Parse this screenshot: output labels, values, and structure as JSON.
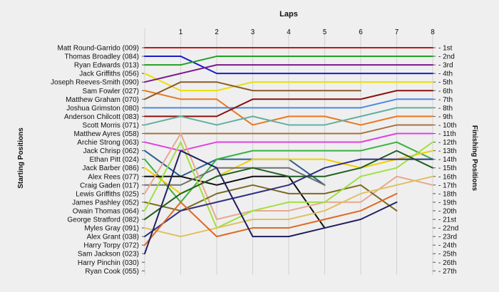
{
  "chart_data": {
    "type": "line",
    "title": "Laps",
    "ylabel_left": "Starting Positions",
    "ylabel_right": "Finishing Positions",
    "laps": [
      "1",
      "2",
      "3",
      "4",
      "5",
      "6",
      "7",
      "8"
    ],
    "position_labels": [
      "1st",
      "2nd",
      "3rd",
      "4th",
      "5th",
      "6th",
      "7th",
      "8th",
      "9th",
      "10th",
      "11th",
      "12th",
      "13th",
      "14th",
      "15th",
      "16th",
      "17th",
      "18th",
      "19th",
      "20th",
      "21st",
      "22nd",
      "23rd",
      "24th",
      "25th",
      "26th",
      "27th"
    ],
    "grid": true,
    "series": [
      {
        "name": "Matt Round-Garrido (009)",
        "color": "#cc1111",
        "positions": [
          1,
          1,
          1,
          1,
          1,
          1,
          1,
          1,
          1
        ]
      },
      {
        "name": "Thomas Broadley (084)",
        "color": "#1a1ad0",
        "positions": [
          2,
          2,
          4,
          4,
          4,
          4,
          4,
          4,
          4
        ]
      },
      {
        "name": "Ryan Edwards (013)",
        "color": "#22a022",
        "positions": [
          3,
          3,
          2,
          2,
          2,
          2,
          2,
          2,
          2
        ]
      },
      {
        "name": "Jack Griffiths (056)",
        "color": "#e8e000",
        "positions": [
          4,
          6,
          6,
          5,
          5,
          5,
          5,
          5,
          5
        ]
      },
      {
        "name": "Joseph Reeves-Smith (090)",
        "color": "#7a1a8a",
        "positions": [
          5,
          4,
          3,
          3,
          3,
          3,
          3,
          3,
          3
        ]
      },
      {
        "name": "Sam Fowler (027)",
        "color": "#e87820",
        "positions": [
          6,
          7,
          7,
          10,
          9,
          9,
          10,
          9,
          9
        ]
      },
      {
        "name": "Matthew Graham (070)",
        "color": "#8a5a2a",
        "positions": [
          7,
          5,
          5,
          6,
          6,
          6,
          6
        ]
      },
      {
        "name": "Joshua Grimston (080)",
        "color": "#4a8ae0",
        "positions": [
          8,
          8,
          8,
          8,
          8,
          8,
          8,
          7,
          7
        ]
      },
      {
        "name": "Anderson Chilcott (083)",
        "color": "#8b1010",
        "positions": [
          9,
          9,
          9,
          7,
          7,
          7,
          7,
          6,
          6
        ]
      },
      {
        "name": "Scott Morris (071)",
        "color": "#60b0a0",
        "positions": [
          10,
          9,
          10,
          9,
          10,
          10,
          9,
          8,
          8
        ]
      },
      {
        "name": "Matthew Ayres (058)",
        "color": "#a87040",
        "positions": [
          11,
          11,
          11,
          11,
          11,
          11,
          11,
          10,
          10
        ]
      },
      {
        "name": "Archie Strong (063)",
        "color": "#e040e0",
        "positions": [
          12,
          13,
          12,
          12,
          12,
          12,
          12,
          11,
          11
        ]
      },
      {
        "name": "Jack Chrisp (062)",
        "color": "#2a6090",
        "positions": [
          13,
          16,
          14,
          14,
          14,
          17
        ]
      },
      {
        "name": "Ethan Pitt (024)",
        "color": "#3ab040",
        "positions": [
          14,
          19,
          14,
          13,
          13,
          13,
          13,
          12,
          14
        ]
      },
      {
        "name": "Jack Barber (086)",
        "color": "#f0d000",
        "positions": [
          15,
          18,
          16,
          14,
          14,
          14,
          15,
          14,
          13
        ]
      },
      {
        "name": "Alex Rees (077)",
        "color": "#101010",
        "positions": [
          16,
          16,
          17,
          16,
          16,
          22
        ]
      },
      {
        "name": "Craig Gaden (017)",
        "color": "#707070",
        "positions": [
          17,
          17,
          15,
          15,
          15,
          17
        ]
      },
      {
        "name": "Lewis Griffiths (025)",
        "color": "#e8a890",
        "positions": [
          18,
          11,
          21,
          20,
          20,
          19,
          19,
          16,
          17
        ]
      },
      {
        "name": "James Pashley (052)",
        "color": "#7a6a20",
        "positions": [
          19,
          20,
          18,
          17,
          18,
          18,
          17,
          20
        ]
      },
      {
        "name": "Owain Thomas (064)",
        "color": "#a0e040",
        "positions": [
          20,
          12,
          22,
          20,
          19,
          19,
          16,
          15,
          12
        ]
      },
      {
        "name": "George Stratford (082)",
        "color": "#206020",
        "positions": [
          21,
          18,
          16,
          15,
          16,
          16,
          15,
          13,
          15
        ]
      },
      {
        "name": "Myles Gray (091)",
        "color": "#e0c060",
        "positions": [
          22,
          23,
          22,
          21,
          21,
          20,
          18,
          17,
          16
        ]
      },
      {
        "name": "Alex Grant (038)",
        "color": "#303080",
        "positions": [
          23,
          20,
          19,
          18,
          17,
          15,
          14,
          14,
          14
        ]
      },
      {
        "name": "Harry Torpy (072)",
        "color": "#e06820",
        "positions": [
          24,
          19,
          23,
          22,
          22,
          21,
          20,
          18
        ]
      },
      {
        "name": "Sam Jackson (023)",
        "color": "#202060",
        "positions": [
          25,
          13,
          15,
          23,
          23,
          22,
          21,
          19
        ]
      },
      {
        "name": "Harry Pinchin (030)",
        "color": "#888888",
        "positions": [
          26
        ]
      },
      {
        "name": "Ryan Cook (055)",
        "color": "#aaaaaa",
        "positions": [
          27
        ]
      }
    ]
  }
}
